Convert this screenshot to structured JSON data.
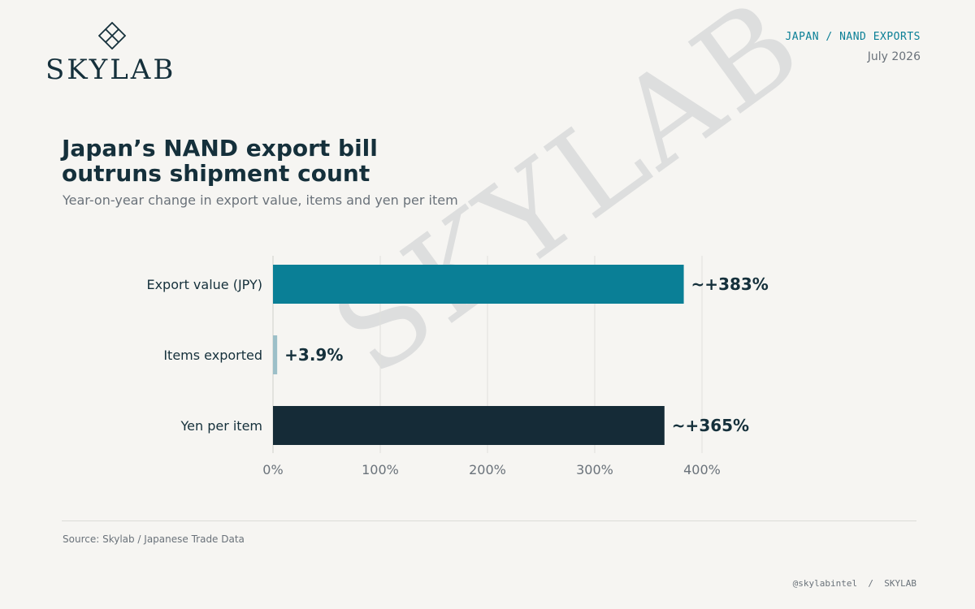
{
  "brand": {
    "name": "SKYLAB",
    "logo_icon": "diamond-lattice-icon"
  },
  "header": {
    "kicker": "JAPAN / NAND EXPORTS",
    "date": "July 2026"
  },
  "watermark": "SKYLAB",
  "colors": {
    "background": "#f6f5f2",
    "teal": "#0a7f96",
    "light_teal": "#9cbfc8",
    "navy": "#152b37",
    "text_dark": "#15303b",
    "text_muted": "#6a727a",
    "grid": "#e0e0dc"
  },
  "chart_data": {
    "type": "bar",
    "orientation": "horizontal",
    "title": "Japan’s NAND export bill outruns shipment count",
    "title_lines": [
      "Japan’s NAND export bill",
      "outruns shipment count"
    ],
    "subtitle": "Year-on-year change in export value, items and yen per item",
    "categories": [
      "Export value (JPY)",
      "Items exported",
      "Yen per item"
    ],
    "values": [
      383,
      3.9,
      365
    ],
    "data_labels": [
      "~+383%",
      "+3.9%",
      "~+365%"
    ],
    "bar_colors": [
      "#0a7f96",
      "#9cbfc8",
      "#152b37"
    ],
    "xlim": [
      0,
      400
    ],
    "xticks": [
      0,
      100,
      200,
      300,
      400
    ],
    "xtick_labels": [
      "0%",
      "100%",
      "200%",
      "300%",
      "400%"
    ],
    "grid": true
  },
  "footer": {
    "source": "Source: Skylab / Japanese Trade Data",
    "handle": "@skylabintel  /  SKYLAB"
  }
}
